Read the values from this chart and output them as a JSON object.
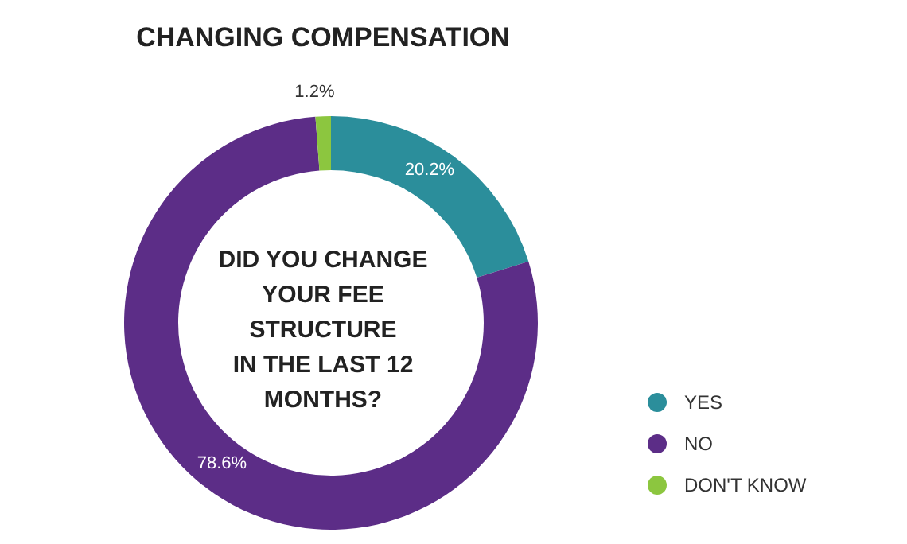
{
  "chart_data": {
    "type": "donut",
    "title": "CHANGING COMPENSATION",
    "categories": [
      "YES",
      "NO",
      "DON'T KNOW"
    ],
    "values": [
      20.2,
      78.6,
      1.2
    ],
    "colors": [
      "#2b8e9b",
      "#5c2d87",
      "#8cc63f"
    ],
    "value_labels": [
      "20.2%",
      "78.6%",
      "1.2%"
    ],
    "annotations": [
      "DID YOU CHANGE YOUR FEE STRUCTURE IN THE LAST 12 MONTHS?"
    ],
    "legend": "bottom right"
  }
}
